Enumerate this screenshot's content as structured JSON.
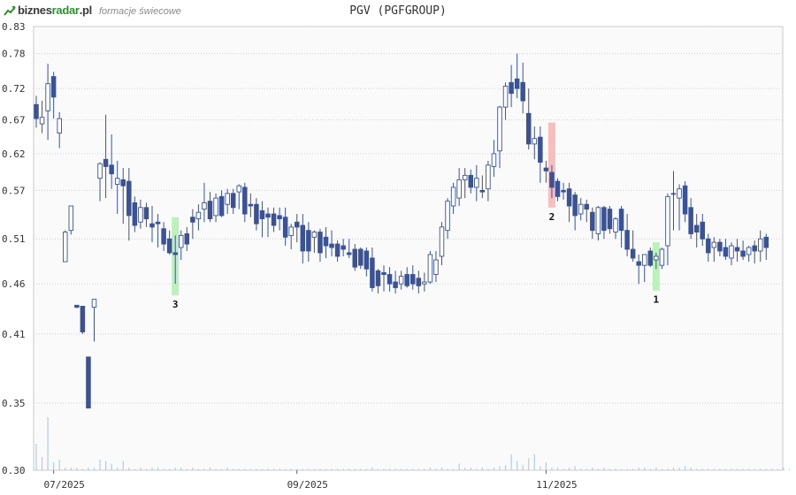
{
  "header": {
    "logo_part1": "biznes",
    "logo_part2": "radar",
    "logo_part3": ".pl",
    "subtitle": "formacje świecowe",
    "title": "PGV (PGFGROUP)"
  },
  "colors": {
    "bear": "#3b5394",
    "bull_fill": "#ffffff",
    "bull_stroke": "#3b5394",
    "volume": "#b3cbe6",
    "grid": "#d0d0d0",
    "bullish_pattern": "#b5f0b5",
    "bearish_pattern": "#f7b7b7"
  },
  "chart_data": {
    "type": "candlestick",
    "title": "PGV (PGFGROUP)",
    "y_scale": "log",
    "ylim": [
      0.3,
      0.83
    ],
    "yticks": [
      "0.83",
      "0.78",
      "0.72",
      "0.67",
      "0.62",
      "0.57",
      "0.51",
      "0.46",
      "0.41",
      "0.35",
      "0.30"
    ],
    "xticks": [
      {
        "label": "07/2025",
        "index": 3
      },
      {
        "label": "09/2025",
        "index": 45
      },
      {
        "label": "11/2025",
        "index": 88
      }
    ],
    "grid": true,
    "candles": [
      [
        0.694,
        0.708,
        0.658,
        0.672
      ],
      [
        0.664,
        0.7,
        0.65,
        0.674
      ],
      [
        0.684,
        0.762,
        0.64,
        0.728
      ],
      [
        0.74,
        0.748,
        0.672,
        0.706
      ],
      [
        0.65,
        0.682,
        0.628,
        0.672
      ],
      [
        0.484,
        0.52,
        0.484,
        0.518
      ],
      [
        0.52,
        0.55,
        0.515,
        0.55
      ],
      [
        0.438,
        0.438,
        0.435,
        0.436
      ],
      [
        0.437,
        0.437,
        0.41,
        0.412
      ],
      [
        0.389,
        0.389,
        0.346,
        0.346
      ],
      [
        0.436,
        0.444,
        0.403,
        0.444
      ],
      [
        0.586,
        0.608,
        0.556,
        0.606
      ],
      [
        0.612,
        0.678,
        0.56,
        0.602
      ],
      [
        0.604,
        0.648,
        0.572,
        0.592
      ],
      [
        0.578,
        0.61,
        0.54,
        0.586
      ],
      [
        0.584,
        0.6,
        0.528,
        0.576
      ],
      [
        0.582,
        0.6,
        0.508,
        0.538
      ],
      [
        0.554,
        0.562,
        0.518,
        0.526
      ],
      [
        0.53,
        0.558,
        0.522,
        0.548
      ],
      [
        0.548,
        0.554,
        0.524,
        0.534
      ],
      [
        0.528,
        0.55,
        0.506,
        0.524
      ],
      [
        0.53,
        0.54,
        0.5,
        0.528
      ],
      [
        0.522,
        0.53,
        0.496,
        0.504
      ],
      [
        0.51,
        0.52,
        0.492,
        0.494
      ],
      [
        0.494,
        0.514,
        0.46,
        0.492
      ],
      [
        0.5,
        0.52,
        0.486,
        0.514
      ],
      [
        0.516,
        0.524,
        0.496,
        0.504
      ],
      [
        0.536,
        0.546,
        0.51,
        0.53
      ],
      [
        0.534,
        0.552,
        0.52,
        0.542
      ],
      [
        0.546,
        0.58,
        0.53,
        0.554
      ],
      [
        0.556,
        0.568,
        0.53,
        0.534
      ],
      [
        0.538,
        0.566,
        0.53,
        0.56
      ],
      [
        0.562,
        0.57,
        0.536,
        0.538
      ],
      [
        0.552,
        0.572,
        0.54,
        0.566
      ],
      [
        0.566,
        0.572,
        0.54,
        0.548
      ],
      [
        0.568,
        0.578,
        0.546,
        0.576
      ],
      [
        0.574,
        0.58,
        0.53,
        0.54
      ],
      [
        0.552,
        0.566,
        0.536,
        0.55
      ],
      [
        0.552,
        0.56,
        0.52,
        0.528
      ],
      [
        0.544,
        0.556,
        0.512,
        0.534
      ],
      [
        0.54,
        0.548,
        0.512,
        0.536
      ],
      [
        0.54,
        0.548,
        0.518,
        0.526
      ],
      [
        0.538,
        0.548,
        0.52,
        0.534
      ],
      [
        0.536,
        0.548,
        0.502,
        0.512
      ],
      [
        0.514,
        0.528,
        0.498,
        0.524
      ],
      [
        0.53,
        0.54,
        0.506,
        0.524
      ],
      [
        0.526,
        0.54,
        0.482,
        0.496
      ],
      [
        0.52,
        0.53,
        0.484,
        0.496
      ],
      [
        0.512,
        0.52,
        0.494,
        0.518
      ],
      [
        0.518,
        0.522,
        0.484,
        0.494
      ],
      [
        0.512,
        0.524,
        0.488,
        0.502
      ],
      [
        0.504,
        0.52,
        0.49,
        0.5
      ],
      [
        0.504,
        0.508,
        0.484,
        0.49
      ],
      [
        0.502,
        0.51,
        0.49,
        0.498
      ],
      [
        0.494,
        0.51,
        0.488,
        0.492
      ],
      [
        0.498,
        0.504,
        0.474,
        0.478
      ],
      [
        0.498,
        0.5,
        0.476,
        0.48
      ],
      [
        0.496,
        0.5,
        0.468,
        0.476
      ],
      [
        0.488,
        0.5,
        0.452,
        0.456
      ],
      [
        0.474,
        0.476,
        0.45,
        0.458
      ],
      [
        0.472,
        0.48,
        0.452,
        0.47
      ],
      [
        0.47,
        0.478,
        0.452,
        0.46
      ],
      [
        0.462,
        0.474,
        0.45,
        0.456
      ],
      [
        0.46,
        0.474,
        0.454,
        0.468
      ],
      [
        0.47,
        0.478,
        0.456,
        0.458
      ],
      [
        0.47,
        0.48,
        0.454,
        0.46
      ],
      [
        0.466,
        0.474,
        0.45,
        0.458
      ],
      [
        0.46,
        0.472,
        0.452,
        0.462
      ],
      [
        0.462,
        0.496,
        0.46,
        0.492
      ],
      [
        0.47,
        0.496,
        0.462,
        0.486
      ],
      [
        0.49,
        0.53,
        0.48,
        0.524
      ],
      [
        0.52,
        0.56,
        0.51,
        0.556
      ],
      [
        0.55,
        0.58,
        0.54,
        0.574
      ],
      [
        0.56,
        0.6,
        0.55,
        0.584
      ],
      [
        0.584,
        0.6,
        0.56,
        0.59
      ],
      [
        0.59,
        0.598,
        0.566,
        0.574
      ],
      [
        0.574,
        0.604,
        0.556,
        0.586
      ],
      [
        0.57,
        0.59,
        0.56,
        0.568
      ],
      [
        0.572,
        0.61,
        0.556,
        0.604
      ],
      [
        0.602,
        0.64,
        0.588,
        0.62
      ],
      [
        0.624,
        0.692,
        0.6,
        0.69
      ],
      [
        0.69,
        0.73,
        0.67,
        0.724
      ],
      [
        0.73,
        0.76,
        0.69,
        0.712
      ],
      [
        0.736,
        0.78,
        0.704,
        0.72
      ],
      [
        0.73,
        0.764,
        0.68,
        0.7
      ],
      [
        0.68,
        0.72,
        0.626,
        0.634
      ],
      [
        0.634,
        0.66,
        0.612,
        0.642
      ],
      [
        0.644,
        0.66,
        0.58,
        0.608
      ],
      [
        0.6,
        0.61,
        0.58,
        0.596
      ],
      [
        0.594,
        0.604,
        0.56,
        0.574
      ],
      [
        0.582,
        0.586,
        0.556,
        0.562
      ],
      [
        0.57,
        0.58,
        0.558,
        0.568
      ],
      [
        0.572,
        0.58,
        0.53,
        0.55
      ],
      [
        0.564,
        0.568,
        0.52,
        0.538
      ],
      [
        0.54,
        0.56,
        0.532,
        0.552
      ],
      [
        0.552,
        0.558,
        0.53,
        0.546
      ],
      [
        0.542,
        0.548,
        0.51,
        0.52
      ],
      [
        0.516,
        0.55,
        0.508,
        0.548
      ],
      [
        0.548,
        0.55,
        0.51,
        0.52
      ],
      [
        0.546,
        0.55,
        0.516,
        0.522
      ],
      [
        0.518,
        0.536,
        0.51,
        0.534
      ],
      [
        0.546,
        0.55,
        0.5,
        0.52
      ],
      [
        0.52,
        0.54,
        0.49,
        0.498
      ],
      [
        0.498,
        0.52,
        0.484,
        0.488
      ],
      [
        0.484,
        0.492,
        0.46,
        0.48
      ],
      [
        0.48,
        0.492,
        0.462,
        0.492
      ],
      [
        0.496,
        0.5,
        0.478,
        0.48
      ],
      [
        0.486,
        0.494,
        0.476,
        0.49
      ],
      [
        0.48,
        0.5,
        0.476,
        0.498
      ],
      [
        0.502,
        0.566,
        0.48,
        0.562
      ],
      [
        0.566,
        0.596,
        0.52,
        0.566
      ],
      [
        0.56,
        0.578,
        0.52,
        0.572
      ],
      [
        0.576,
        0.582,
        0.53,
        0.54
      ],
      [
        0.548,
        0.56,
        0.51,
        0.516
      ],
      [
        0.526,
        0.54,
        0.5,
        0.518
      ],
      [
        0.53,
        0.54,
        0.502,
        0.51
      ],
      [
        0.51,
        0.516,
        0.484,
        0.494
      ],
      [
        0.5,
        0.512,
        0.484,
        0.506
      ],
      [
        0.506,
        0.51,
        0.49,
        0.496
      ],
      [
        0.5,
        0.51,
        0.486,
        0.49
      ],
      [
        0.488,
        0.506,
        0.48,
        0.502
      ],
      [
        0.5,
        0.51,
        0.484,
        0.496
      ],
      [
        0.496,
        0.508,
        0.486,
        0.49
      ],
      [
        0.492,
        0.502,
        0.484,
        0.5
      ],
      [
        0.502,
        0.508,
        0.482,
        0.496
      ],
      [
        0.496,
        0.52,
        0.484,
        0.51
      ],
      [
        0.512,
        0.516,
        0.486,
        0.5
      ]
    ],
    "volumes": [
      0.2,
      0.1,
      0.4,
      0.06,
      0.08,
      0.02,
      0.02,
      0.02,
      0.01,
      0.02,
      0.02,
      0.08,
      0.07,
      0.05,
      0.02,
      0.07,
      0.02,
      0.01,
      0.02,
      0.01,
      0.02,
      0.02,
      0.01,
      0.01,
      0.02,
      0.02,
      0.01,
      0.02,
      0.01,
      0.01,
      0.02,
      0.01,
      0.01,
      0.02,
      0.01,
      0.01,
      0.01,
      0.01,
      0.01,
      0.01,
      0.01,
      0.01,
      0.01,
      0.01,
      0.01,
      0.01,
      0.01,
      0.01,
      0.01,
      0.01,
      0.01,
      0.01,
      0.01,
      0.01,
      0.01,
      0.01,
      0.01,
      0.01,
      0.02,
      0.01,
      0.01,
      0.01,
      0.01,
      0.01,
      0.01,
      0.01,
      0.01,
      0.01,
      0.02,
      0.01,
      0.02,
      0.01,
      0.01,
      0.05,
      0.02,
      0.02,
      0.01,
      0.02,
      0.01,
      0.02,
      0.03,
      0.04,
      0.12,
      0.07,
      0.04,
      0.09,
      0.12,
      0.03,
      0.06,
      0.02,
      0.02,
      0.01,
      0.02,
      0.03,
      0.01,
      0.01,
      0.02,
      0.01,
      0.02,
      0.01,
      0.01,
      0.01,
      0.01,
      0.01,
      0.02,
      0.02,
      0.01,
      0.02,
      0.01,
      0.01,
      0.02,
      0.02,
      0.03,
      0.02,
      0.01,
      0.01,
      0.01,
      0.01,
      0.01,
      0.01,
      0.01,
      0.01,
      0.01,
      0.01,
      0.01,
      0.01,
      0.01,
      0.01,
      0.01,
      0.02,
      0.01
    ],
    "patterns": [
      {
        "label": "1",
        "index": 107,
        "y_top": 0.506,
        "y_bottom": 0.453,
        "kind": "bullish"
      },
      {
        "label": "2",
        "index": 89,
        "y_top": 0.666,
        "y_bottom": 0.548,
        "kind": "bearish"
      },
      {
        "label": "3",
        "index": 24,
        "y_top": 0.536,
        "y_bottom": 0.448,
        "kind": "bullish"
      }
    ]
  }
}
